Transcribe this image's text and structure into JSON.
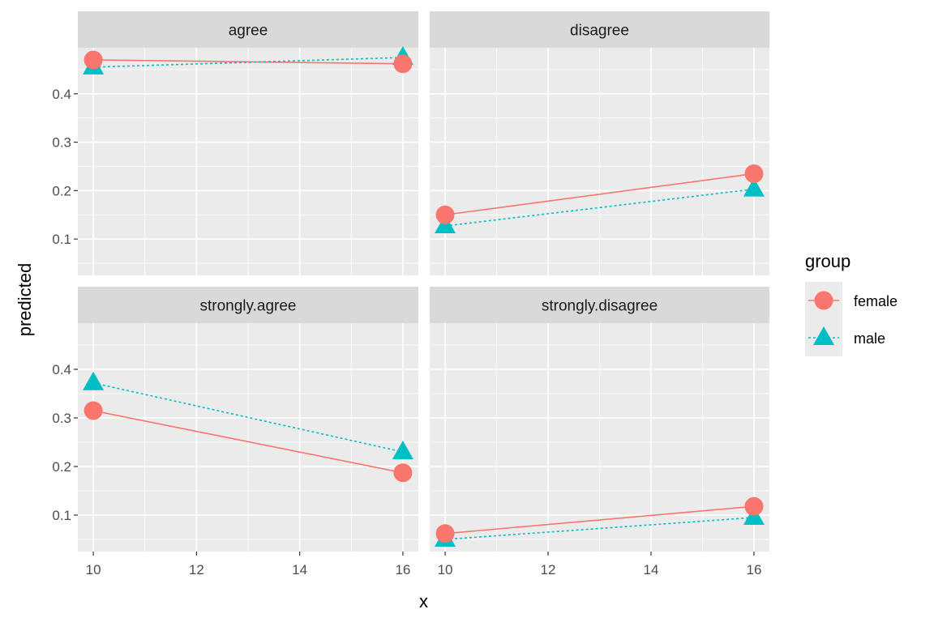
{
  "chart_data": {
    "type": "line",
    "xlabel": "x",
    "ylabel": "predicted",
    "x": [
      10,
      16
    ],
    "x_ticks": [
      10,
      12,
      14,
      16
    ],
    "x_tick_labels": [
      "10",
      "12",
      "14",
      "16"
    ],
    "xlim": [
      9.7,
      16.3
    ],
    "y_ticks": [
      0.1,
      0.2,
      0.3,
      0.4
    ],
    "y_tick_labels": [
      "0.1",
      "0.2",
      "0.3",
      "0.4"
    ],
    "ylim": [
      0.025,
      0.495
    ],
    "grid": true,
    "legend": {
      "title": "group",
      "position": "right",
      "entries": [
        {
          "label": "female",
          "color": "#F8766D",
          "shape": "circle",
          "line": "solid"
        },
        {
          "label": "male",
          "color": "#00BFC4",
          "shape": "triangle",
          "line": "dotted"
        }
      ]
    },
    "panels": [
      {
        "title": "agree",
        "series": [
          {
            "name": "female",
            "values": [
              0.47,
              0.462
            ]
          },
          {
            "name": "male",
            "values": [
              0.455,
              0.475
            ]
          }
        ]
      },
      {
        "title": "disagree",
        "series": [
          {
            "name": "female",
            "values": [
              0.15,
              0.235
            ]
          },
          {
            "name": "male",
            "values": [
              0.127,
              0.203
            ]
          }
        ]
      },
      {
        "title": "strongly.agree",
        "series": [
          {
            "name": "female",
            "values": [
              0.315,
              0.187
            ]
          },
          {
            "name": "male",
            "values": [
              0.372,
              0.23
            ]
          }
        ]
      },
      {
        "title": "strongly.disagree",
        "series": [
          {
            "name": "female",
            "values": [
              0.062,
              0.118
            ]
          },
          {
            "name": "male",
            "values": [
              0.05,
              0.095
            ]
          }
        ]
      }
    ]
  }
}
